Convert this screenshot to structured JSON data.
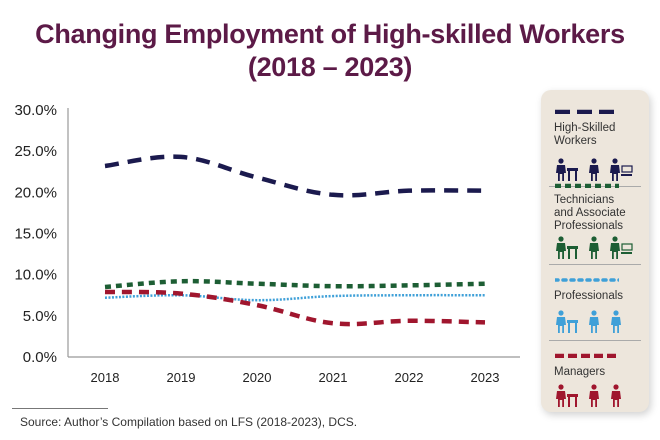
{
  "chart_data": {
    "type": "line",
    "title": "Changing Employment of High-skilled Workers (2018 – 2023)",
    "xlabel": "",
    "ylabel": "",
    "x": [
      "2018",
      "2019",
      "2020",
      "2021",
      "2022",
      "2023"
    ],
    "ylim": [
      0,
      30
    ],
    "yticks": [
      "0.0%",
      "5.0%",
      "10.0%",
      "15.0%",
      "20.0%",
      "25.0%",
      "30.0%"
    ],
    "grid": false,
    "legend_position": "right",
    "series": [
      {
        "name": "High-Skilled Workers",
        "color": "#1b1a4e",
        "dash": "long-dash",
        "values": [
          23.2,
          24.3,
          21.8,
          19.7,
          20.2,
          20.2
        ]
      },
      {
        "name": "Technicians and Associate Professionals",
        "color": "#1d5e34",
        "dash": "square-dot",
        "values": [
          8.5,
          9.2,
          8.9,
          8.6,
          8.7,
          8.9
        ]
      },
      {
        "name": "Professionals",
        "color": "#3fa0d8",
        "dash": "round-dot",
        "values": [
          7.2,
          7.5,
          6.9,
          7.4,
          7.5,
          7.5
        ]
      },
      {
        "name": "Managers",
        "color": "#a0162e",
        "dash": "dash",
        "values": [
          7.9,
          7.7,
          6.3,
          4.1,
          4.4,
          4.2
        ]
      }
    ]
  },
  "title_line1": "Changing Employment of High-skilled Workers",
  "title_line2": "(2018 – 2023)",
  "source": "Source: Author’s Compilation based on LFS (2018-2023), DCS.",
  "legend": {
    "items": [
      {
        "label_lines": [
          "High-Skilled",
          "Workers"
        ],
        "icons": [
          "teacher-icon",
          "doctor-icon",
          "patient-care-icon"
        ]
      },
      {
        "label_lines": [
          "Technicians",
          "and Associate",
          "Professionals"
        ],
        "icons": [
          "field-technician-icon",
          "engineer-icon",
          "presenter-icon"
        ]
      },
      {
        "label_lines": [
          "Professionals"
        ],
        "icons": [
          "professional-man-icon",
          "professional-waving-icon",
          "professional-woman-icon"
        ]
      },
      {
        "label_lines": [
          "Managers"
        ],
        "icons": [
          "factory-manager-icon",
          "manager-clipboard-icon",
          "manager-suit-icon"
        ]
      }
    ]
  }
}
